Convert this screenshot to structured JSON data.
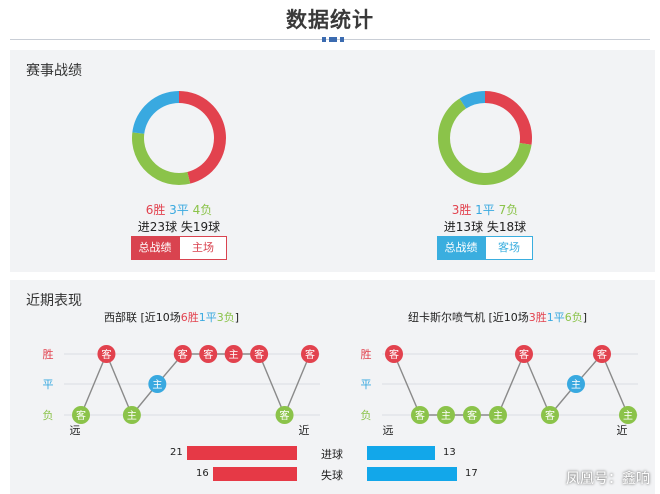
{
  "page": {
    "title": "数据统计"
  },
  "colors": {
    "win": "#e2424e",
    "draw": "#39a9e0",
    "loss": "#8bc34a",
    "goals_bar": "#e63946",
    "bar_blue": "#12a7ea"
  },
  "record": {
    "title": "赛事战绩",
    "home": {
      "win_count": 6,
      "draw_count": 3,
      "loss_count": 4,
      "win": "6胜",
      "draw": "3平",
      "loss": "4负",
      "goals": "进23球",
      "conceded": "失19球",
      "btn_all": "总战绩",
      "btn_venue": "主场"
    },
    "away": {
      "win_count": 3,
      "draw_count": 1,
      "loss_count": 7,
      "win": "3胜",
      "draw": "1平",
      "loss": "7负",
      "goals": "进13球",
      "conceded": "失18球",
      "btn_all": "总战绩",
      "btn_venue": "客场"
    }
  },
  "recent": {
    "title": "近期表现",
    "axis": {
      "win": "胜",
      "draw": "平",
      "loss": "负"
    },
    "home": {
      "team": "西部联",
      "cap_prefix": " [近10场",
      "w": "6胜",
      "d": "1平",
      "l": "3负",
      "cap_suffix": "]",
      "far": "远",
      "near": "近",
      "matches": [
        {
          "r": "L",
          "v": "客"
        },
        {
          "r": "W",
          "v": "客"
        },
        {
          "r": "L",
          "v": "主"
        },
        {
          "r": "D",
          "v": "主"
        },
        {
          "r": "W",
          "v": "客"
        },
        {
          "r": "W",
          "v": "客"
        },
        {
          "r": "W",
          "v": "主"
        },
        {
          "r": "W",
          "v": "客"
        },
        {
          "r": "L",
          "v": "客"
        },
        {
          "r": "W",
          "v": "客"
        }
      ]
    },
    "away": {
      "team": "纽卡斯尔喷气机",
      "cap_prefix": " [近10场",
      "w": "3胜",
      "d": "1平",
      "l": "6负",
      "cap_suffix": "]",
      "far": "远",
      "near": "近",
      "matches": [
        {
          "r": "W",
          "v": "客"
        },
        {
          "r": "L",
          "v": "客"
        },
        {
          "r": "L",
          "v": "主"
        },
        {
          "r": "L",
          "v": "客"
        },
        {
          "r": "L",
          "v": "主"
        },
        {
          "r": "W",
          "v": "客"
        },
        {
          "r": "L",
          "v": "客"
        },
        {
          "r": "D",
          "v": "主"
        },
        {
          "r": "W",
          "v": "客"
        },
        {
          "r": "L",
          "v": "主"
        }
      ]
    },
    "goals": {
      "label": "进球",
      "home": 21,
      "away": 13
    },
    "conceded": {
      "label": "失球",
      "home": 16,
      "away": 17
    }
  },
  "watermark": "凤凰号：鑫响"
}
